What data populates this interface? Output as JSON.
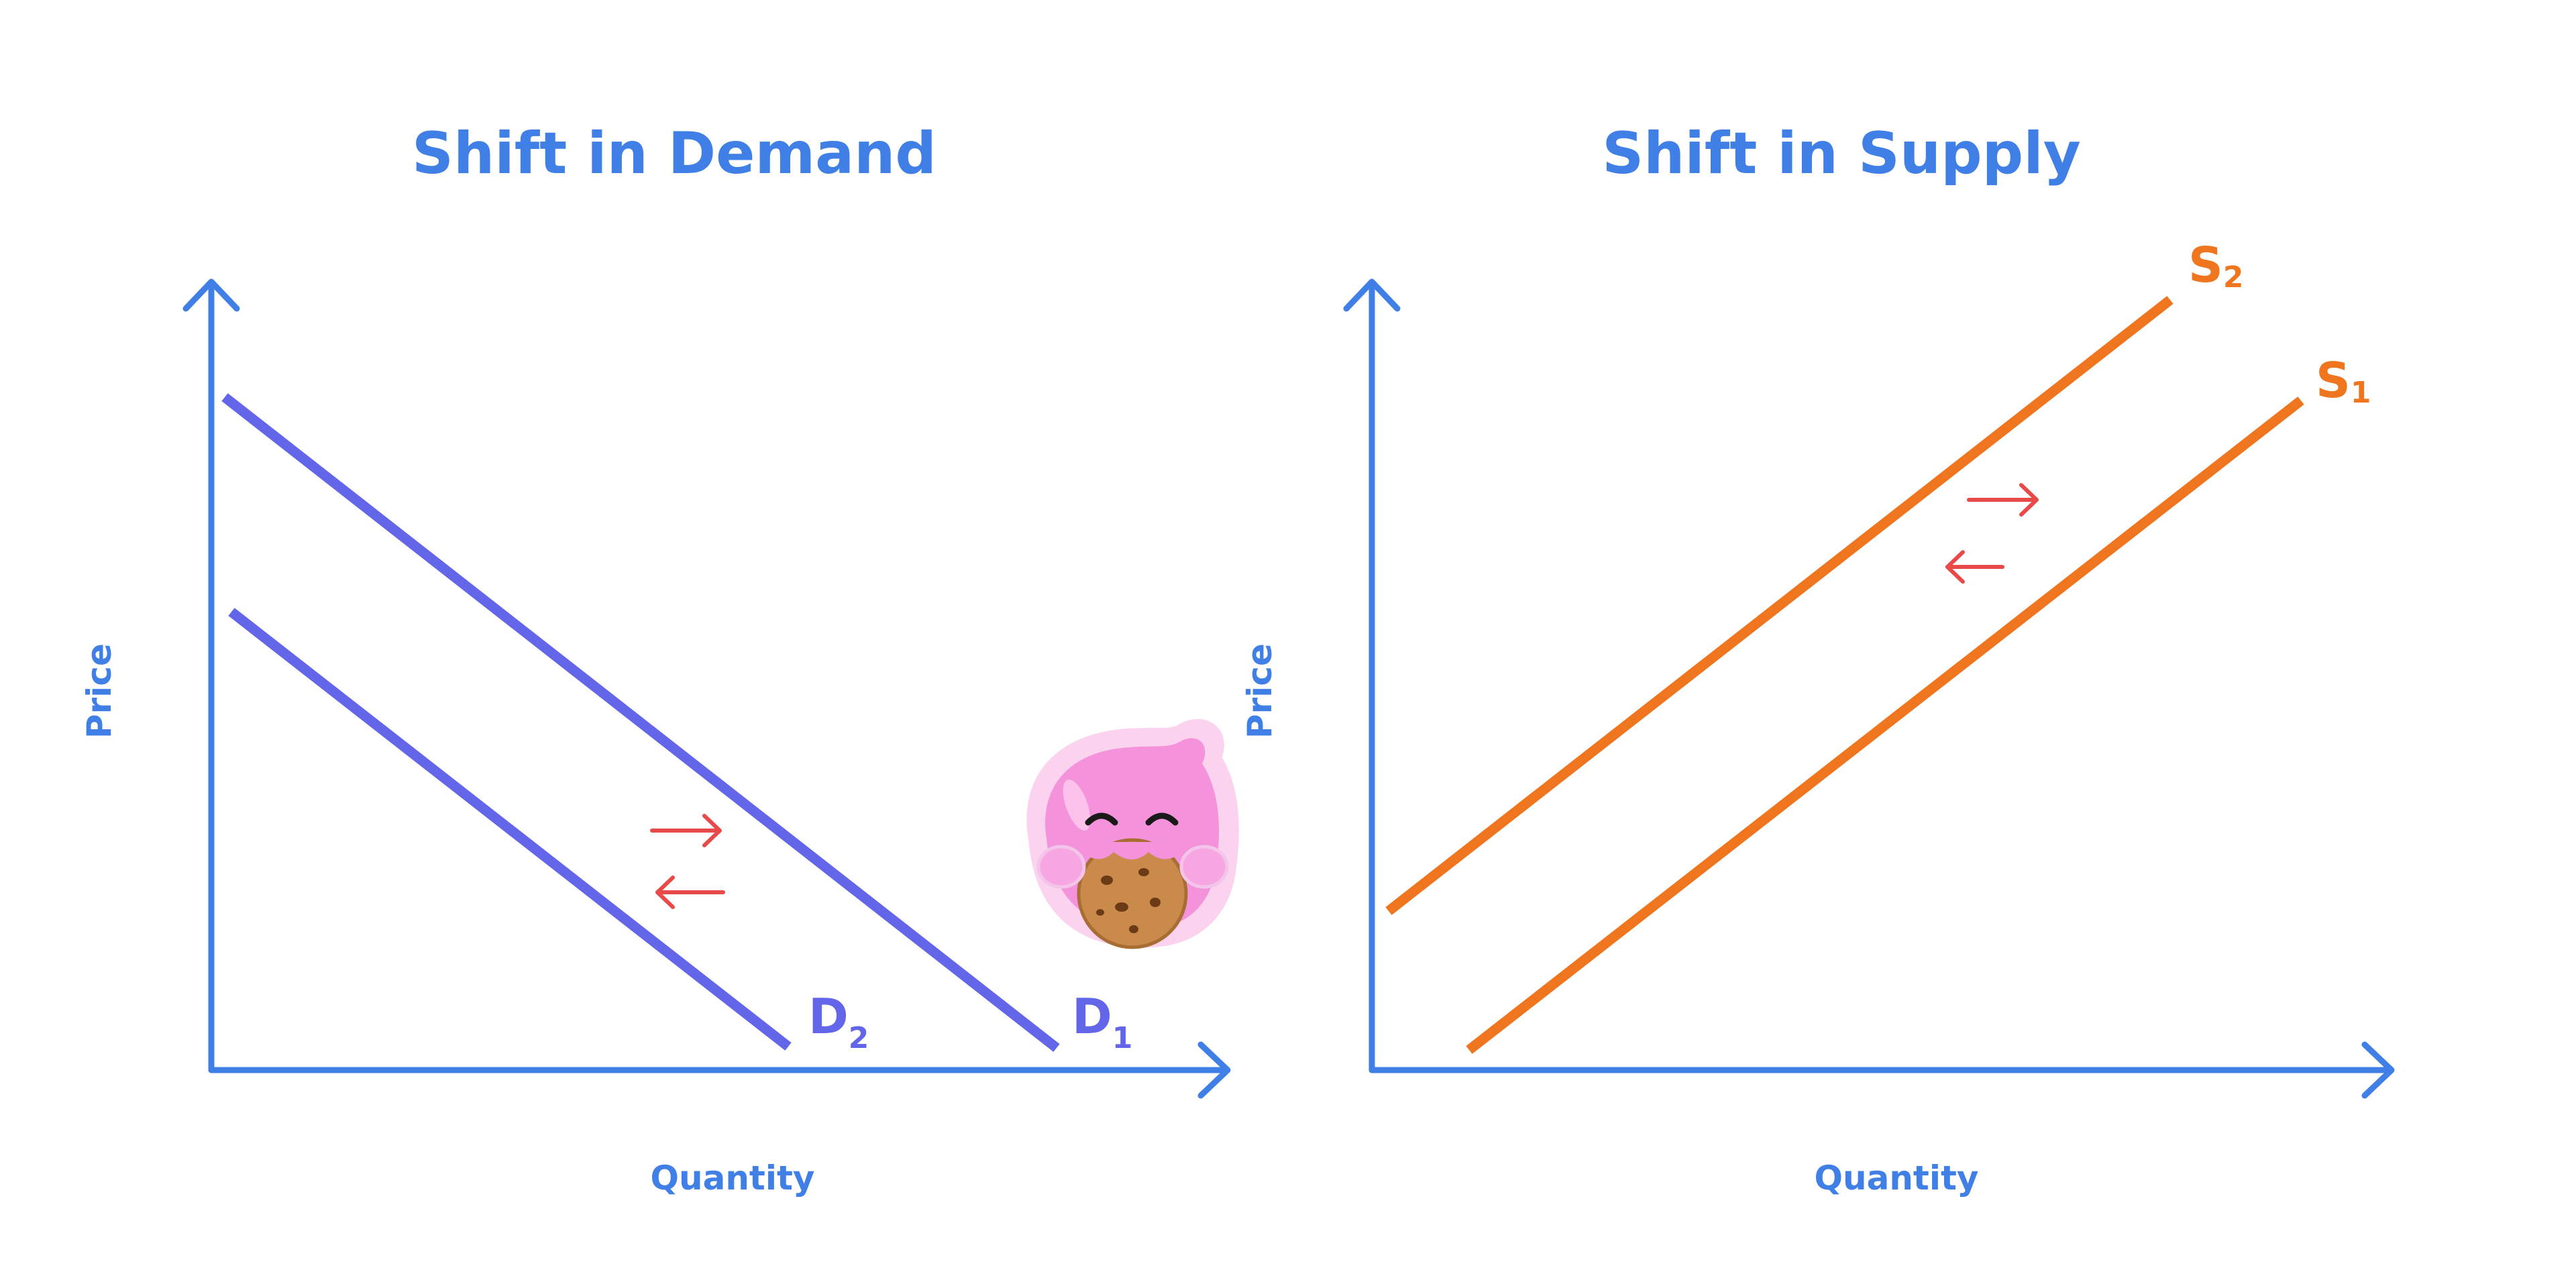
{
  "colors": {
    "axis": "#3f7fe6",
    "demand": "#6366e8",
    "supply": "#f0751f",
    "shift_arrow": "#e84a4a",
    "mascot_body": "#f592dc",
    "cookie": "#c98a4b"
  },
  "panels": {
    "demand": {
      "title": "Shift in Demand",
      "y_axis_label": "Price",
      "x_axis_label": "Quantity",
      "curves": [
        {
          "letter": "D",
          "sub": "2"
        },
        {
          "letter": "D",
          "sub": "1"
        }
      ]
    },
    "supply": {
      "title": "Shift in Supply",
      "y_axis_label": "Price",
      "x_axis_label": "Quantity",
      "curves": [
        {
          "letter": "S",
          "sub": "2"
        },
        {
          "letter": "S",
          "sub": "1"
        }
      ]
    }
  },
  "mascot": {
    "icon": "pink-mascot-eating-cookie-icon"
  }
}
